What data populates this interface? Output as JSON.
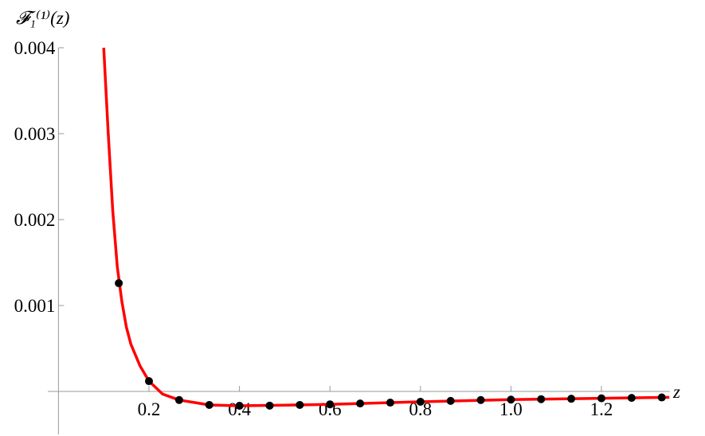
{
  "chart_data": {
    "type": "line",
    "x_label": "z",
    "y_label": "𝓕₁⁽¹⁾(z)",
    "xlim": [
      0,
      1.36
    ],
    "ylim": [
      -0.0005,
      0.004
    ],
    "xticks": [
      0.2,
      0.4,
      0.6,
      0.8,
      {
        "value": 1,
        "label": "1.0"
      },
      1.2
    ],
    "yticks": [
      0.001,
      0.002,
      0.003,
      0.004
    ],
    "series": [
      {
        "mode": "line",
        "color": "#ff0000",
        "x": [
          0.1,
          0.11,
          0.12,
          0.13,
          0.14,
          0.15,
          0.16,
          0.18,
          0.2,
          0.23,
          0.2667,
          0.3333,
          0.4,
          0.5,
          0.6,
          0.8,
          1.0,
          1.2,
          1.35
        ],
        "values": [
          0.004,
          0.003,
          0.0021,
          0.00145,
          0.00105,
          0.00075,
          0.00055,
          0.0003,
          0.00012,
          -3e-05,
          -0.0001,
          -0.000157,
          -0.000167,
          -0.00016,
          -0.00015,
          -0.00012,
          -9.5e-05,
          -8e-05,
          -6.8e-05
        ]
      },
      {
        "mode": "markers",
        "color": "#000000",
        "x": [
          0.1333,
          0.2,
          0.2667,
          0.3333,
          0.4,
          0.4667,
          0.5333,
          0.6,
          0.6667,
          0.7333,
          0.8,
          0.8667,
          0.9333,
          1.0,
          1.0667,
          1.1333,
          1.2,
          1.2667,
          1.3333
        ],
        "values": [
          0.00126,
          0.00012,
          -0.0001,
          -0.000157,
          -0.000167,
          -0.000165,
          -0.000157,
          -0.00015,
          -0.00014,
          -0.00013,
          -0.00012,
          -0.00011,
          -0.0001,
          -9.5e-05,
          -9e-05,
          -8.5e-05,
          -8e-05,
          -7.5e-05,
          -7e-05
        ]
      }
    ]
  }
}
